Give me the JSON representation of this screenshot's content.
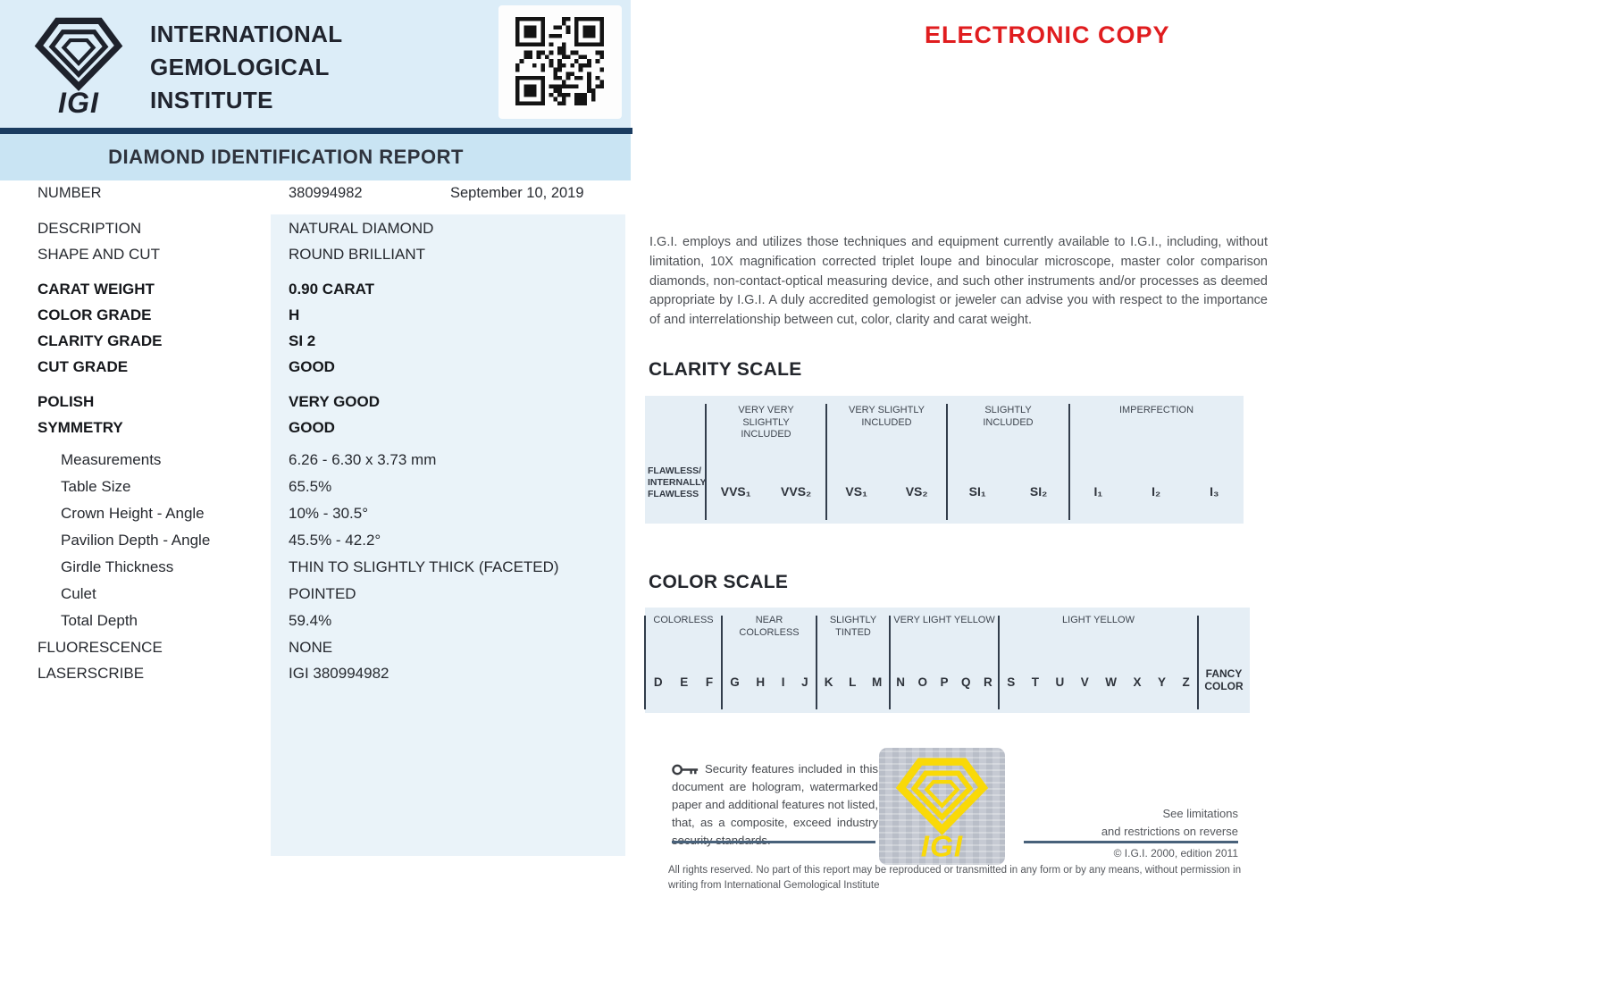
{
  "colors": {
    "header_band": "#dcedf8",
    "title_band": "#c9e4f3",
    "navy_rule": "#1a3c60",
    "value_panel": "#eaf3f9",
    "scale_box": "#e5eef5",
    "stamp_red": "#e01d1f",
    "watermark_yellow": "#f9d908",
    "watermark_gray": "#c6cad3"
  },
  "header": {
    "brand_lines": [
      "INTERNATIONAL",
      "GEMOLOGICAL",
      "INSTITUTE"
    ],
    "report_title": "DIAMOND IDENTIFICATION REPORT",
    "electronic_copy": "ELECTRONIC COPY"
  },
  "report": {
    "number_label": "NUMBER",
    "number_value": "380994982",
    "date": "September 10, 2019",
    "rows": [
      {
        "label": "DESCRIPTION",
        "value": "NATURAL DIAMOND",
        "cls": "reg"
      },
      {
        "label": "SHAPE AND CUT",
        "value": "ROUND BRILLIANT",
        "cls": "reg"
      },
      {
        "label": "CARAT WEIGHT",
        "value": "0.90 CARAT",
        "cls": "bold gap-sm"
      },
      {
        "label": "COLOR GRADE",
        "value": "H",
        "cls": "bold"
      },
      {
        "label": "CLARITY GRADE",
        "value": "SI 2",
        "cls": "bold"
      },
      {
        "label": "CUT GRADE",
        "value": "GOOD",
        "cls": "bold"
      },
      {
        "label": "POLISH",
        "value": "VERY GOOD",
        "cls": "bold gap-sm"
      },
      {
        "label": "SYMMETRY",
        "value": "GOOD",
        "cls": "bold"
      },
      {
        "label": "Measurements",
        "value": "6.26 - 6.30 x 3.73 mm",
        "cls": "ind gap-xs"
      },
      {
        "label": "Table Size",
        "value": "65.5%",
        "cls": "ind"
      },
      {
        "label": "Crown Height - Angle",
        "value": "10% - 30.5°",
        "cls": "ind"
      },
      {
        "label": "Pavilion Depth - Angle",
        "value": "45.5% - 42.2°",
        "cls": "ind"
      },
      {
        "label": "Girdle Thickness",
        "value": "THIN TO SLIGHTLY THICK (FACETED)",
        "cls": "ind"
      },
      {
        "label": "Culet",
        "value": "POINTED",
        "cls": "ind"
      },
      {
        "label": "Total Depth",
        "value": "59.4%",
        "cls": "ind"
      },
      {
        "label": "FLUORESCENCE",
        "value": "NONE",
        "cls": "reg"
      },
      {
        "label": "LASERSCRIBE",
        "value": "IGI 380994982",
        "cls": "reg"
      }
    ]
  },
  "disclaimer": "I.G.I. employs and utilizes those techniques and equipment currently available to I.G.I., including, without limitation, 10X magnification corrected triplet loupe and binocular microscope, master color comparison diamonds, non-contact-optical measuring device, and such other instruments and/or processes as deemed appropriate by I.G.I. A duly accredited gemologist or jeweler can advise you with respect to the importance of and interrelationship between cut, color, clarity and carat weight.",
  "clarity_scale": {
    "title": "CLARITY SCALE",
    "flawless_lines": [
      "FLAWLESS/",
      "INTERNALLY",
      "FLAWLESS"
    ],
    "groups": [
      {
        "header_lines": [
          "VERY VERY",
          "SLIGHTLY",
          "INCLUDED"
        ],
        "grades": [
          "VVS₁",
          "VVS₂"
        ]
      },
      {
        "header_lines": [
          "VERY SLIGHTLY",
          "INCLUDED"
        ],
        "grades": [
          "VS₁",
          "VS₂"
        ]
      },
      {
        "header_lines": [
          "SLIGHTLY",
          "INCLUDED"
        ],
        "grades": [
          "SI₁",
          "SI₂"
        ]
      },
      {
        "header_lines": [
          "IMPERFECTION"
        ],
        "grades": [
          "I₁",
          "I₂",
          "I₃"
        ]
      }
    ]
  },
  "color_scale": {
    "title": "COLOR SCALE",
    "groups": [
      {
        "header_lines": [
          "COLORLESS"
        ],
        "letters": [
          "D",
          "E",
          "F"
        ]
      },
      {
        "header_lines": [
          "NEAR",
          "COLORLESS"
        ],
        "letters": [
          "G",
          "H",
          "I",
          "J"
        ]
      },
      {
        "header_lines": [
          "SLIGHTLY",
          "TINTED"
        ],
        "letters": [
          "K",
          "L",
          "M"
        ]
      },
      {
        "header_lines": [
          "VERY LIGHT YELLOW"
        ],
        "letters": [
          "N",
          "O",
          "P",
          "Q",
          "R"
        ]
      },
      {
        "header_lines": [
          "LIGHT YELLOW"
        ],
        "letters": [
          "S",
          "T",
          "U",
          "V",
          "W",
          "X",
          "Y",
          "Z"
        ]
      }
    ],
    "fancy_lines": [
      "FANCY",
      "COLOR"
    ]
  },
  "footer": {
    "security_text": "Security features included in this document are hologram, watermarked paper and additional features not listed, that, as a composite, exceed industry security standards.",
    "see_limitations_lines": [
      "See limitations",
      "and restrictions on reverse"
    ],
    "copyright": "© I.G.I. 2000, edition 2011",
    "all_rights": "All rights reserved. No part of this report may be reproduced or transmitted in any form or by any means, without permission in writing from International Gemological Institute"
  }
}
